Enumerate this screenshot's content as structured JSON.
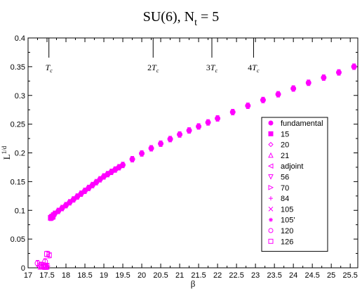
{
  "chart_data": {
    "type": "scatter",
    "title": "SU(6), N",
    "title_subscript": "t",
    "title_suffix": " = 5",
    "xlabel": "β",
    "ylabel": "L",
    "ylabel_superscript": "1/d",
    "xlim": [
      17,
      25.7
    ],
    "ylim": [
      0,
      0.4
    ],
    "xticks": [
      17,
      17.5,
      18,
      18.5,
      19,
      19.5,
      20,
      20.5,
      21,
      21.5,
      22,
      22.5,
      23,
      23.5,
      24,
      24.5,
      25,
      25.5
    ],
    "xtick_labels": [
      "17",
      "17.5",
      "18",
      "18.5",
      "19",
      "19.5",
      "20",
      "20.5",
      "21",
      "21.5",
      "22",
      "22.5",
      "23",
      "23.5",
      "24",
      "24.5",
      "25",
      "25.5"
    ],
    "yticks": [
      0,
      0.05,
      0.1,
      0.15,
      0.2,
      0.25,
      0.3,
      0.35,
      0.4
    ],
    "ytick_labels": [
      "0",
      "0.05",
      "0.1",
      "0.15",
      "0.2",
      "0.25",
      "0.3",
      "0.35",
      "0.4"
    ],
    "grid": false,
    "legend_position": "right",
    "color": "#ff00ff",
    "tc_markers": [
      {
        "x": 17.55,
        "label": "T",
        "sub": "c",
        "prefix": ""
      },
      {
        "x": 20.3,
        "label": "T",
        "sub": "c",
        "prefix": "2"
      },
      {
        "x": 21.85,
        "label": "T",
        "sub": "c",
        "prefix": "3"
      },
      {
        "x": 22.95,
        "label": "T",
        "sub": "c",
        "prefix": "4"
      }
    ],
    "series": [
      {
        "name": "fundamental",
        "marker": "circle-filled",
        "x": [
          17.6,
          17.65,
          17.7,
          17.8,
          17.9,
          18.0,
          18.1,
          18.2,
          18.3,
          18.4,
          18.5,
          18.6,
          18.7,
          18.8,
          18.9,
          19.0,
          19.1,
          19.2,
          19.3,
          19.4,
          19.5,
          19.75,
          20.0,
          20.25,
          20.5,
          20.75,
          21.0,
          21.25,
          21.5,
          21.75,
          22.0,
          22.4,
          22.8,
          23.2,
          23.6,
          24.0,
          24.4,
          24.8,
          25.2,
          25.6
        ],
        "y": [
          0.088,
          0.091,
          0.094,
          0.099,
          0.104,
          0.109,
          0.114,
          0.119,
          0.124,
          0.129,
          0.134,
          0.139,
          0.144,
          0.149,
          0.154,
          0.159,
          0.163,
          0.167,
          0.171,
          0.175,
          0.179,
          0.189,
          0.199,
          0.208,
          0.216,
          0.224,
          0.232,
          0.239,
          0.246,
          0.253,
          0.26,
          0.271,
          0.282,
          0.292,
          0.302,
          0.312,
          0.322,
          0.331,
          0.34,
          0.35
        ]
      },
      {
        "name": "15",
        "marker": "square-filled",
        "x": [
          17.6,
          17.65
        ],
        "y": [
          0.087,
          0.089
        ]
      },
      {
        "name": "20",
        "marker": "diamond-open",
        "x": [
          17.3
        ],
        "y": [
          0.0025
        ]
      },
      {
        "name": "21",
        "marker": "triangle-up-open",
        "x": [
          17.35
        ],
        "y": [
          0.0025
        ]
      },
      {
        "name": "adjoint",
        "marker": "triangle-left-open",
        "x": [
          17.4,
          17.55
        ],
        "y": [
          0.004,
          0.022
        ]
      },
      {
        "name": "56",
        "marker": "triangle-down-open",
        "x": [
          17.42
        ],
        "y": [
          0.002
        ]
      },
      {
        "name": "70",
        "marker": "triangle-right-open",
        "x": [
          17.45
        ],
        "y": [
          0.002
        ]
      },
      {
        "name": "84",
        "marker": "plus",
        "x": [
          17.5
        ],
        "y": [
          0.002
        ]
      },
      {
        "name": "105",
        "marker": "x",
        "x": [
          17.48
        ],
        "y": [
          0.003
        ]
      },
      {
        "name": "105'",
        "marker": "star",
        "x": [
          17.52
        ],
        "y": [
          0.003
        ]
      },
      {
        "name": "120",
        "marker": "circle-open",
        "x": [
          17.25,
          17.45
        ],
        "y": [
          0.008,
          0.011
        ]
      },
      {
        "name": "126",
        "marker": "square-open",
        "x": [
          17.35,
          17.5
        ],
        "y": [
          0.005,
          0.024
        ]
      }
    ]
  }
}
